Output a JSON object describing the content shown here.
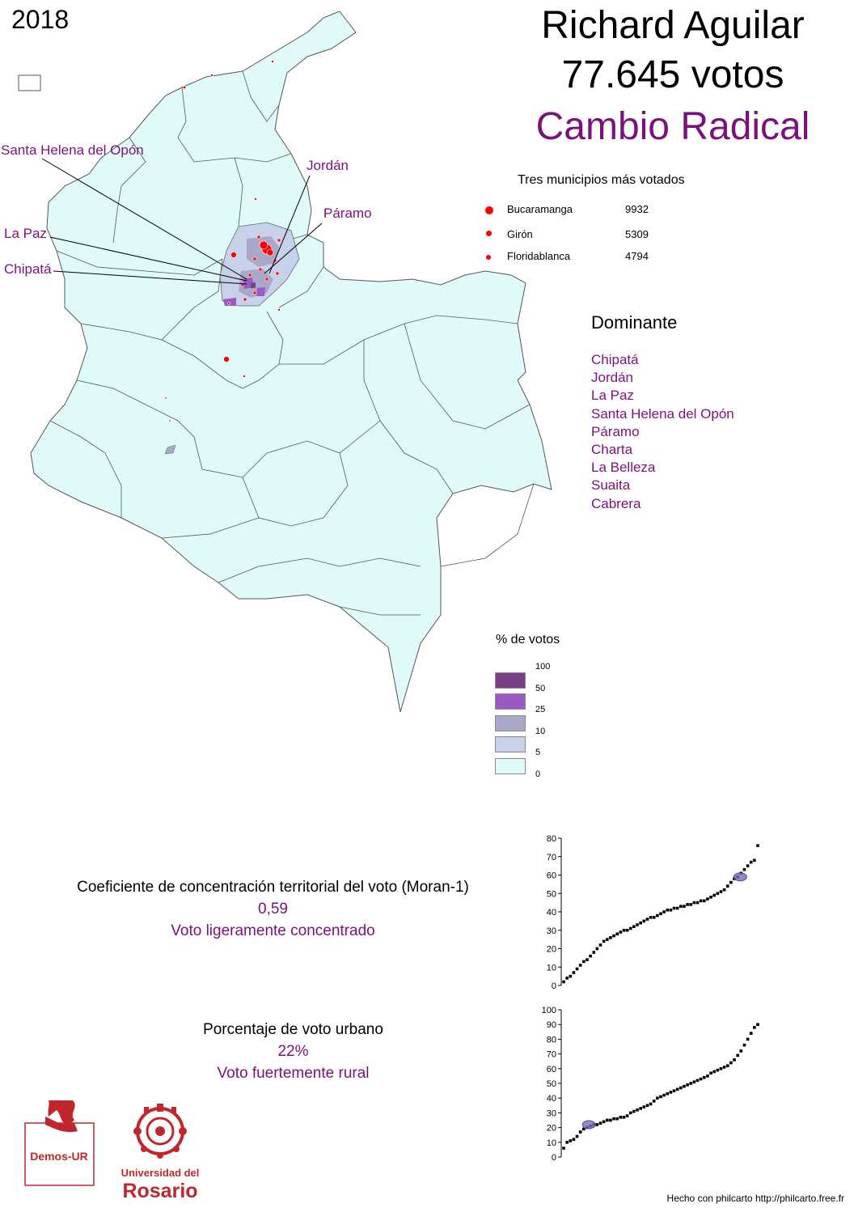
{
  "year": "2018",
  "candidate": {
    "name": "Richard Aguilar",
    "votes": "77.645 votos",
    "party": "Cambio Radical"
  },
  "colors": {
    "party": "#7b117b",
    "land": "#e0fafa",
    "border": "#555555",
    "dots": "#ff0000",
    "class_100": "#7a3e86",
    "class_50": "#9a59c4",
    "class_25": "#a9a8c8",
    "class_10": "#c7d1ea",
    "class_5": "#e0fafa"
  },
  "map_labels": [
    "Santa Helena del Opón",
    "Jordán",
    "Páramo",
    "La Paz",
    "Chipatá"
  ],
  "top_municipalities": {
    "title": "Tres municipios más votados",
    "items": [
      {
        "name": "Bucaramanga",
        "votes": "9932"
      },
      {
        "name": "Girón",
        "votes": "5309"
      },
      {
        "name": "Floridablanca",
        "votes": "4794"
      }
    ]
  },
  "dominant": {
    "title": "Dominante",
    "items": [
      "Chipatá",
      "Jordán",
      "La Paz",
      "Santa Helena del Opón",
      "Páramo",
      "Charta",
      "La Belleza",
      "Suaita",
      "Cabrera"
    ]
  },
  "legend": {
    "title": "% de votos",
    "breaks": [
      "100",
      "50",
      "25",
      "10",
      "5",
      "0"
    ]
  },
  "moran": {
    "title": "Coeficiente de concentración territorial del voto (Moran-1)",
    "value": "0,59",
    "label": "Voto ligeramente concentrado"
  },
  "urban": {
    "title": "Porcentaje de voto urbano",
    "value": "22%",
    "label": "Voto fuertemente rural"
  },
  "chart_data": [
    {
      "type": "scatter",
      "title": "",
      "xlabel": "",
      "ylabel": "",
      "ylim": [
        0,
        80
      ],
      "yticks": [
        0,
        10,
        20,
        30,
        40,
        50,
        60,
        70,
        80
      ],
      "highlight": {
        "rank": 0.91,
        "value": 59
      },
      "values": [
        2,
        4,
        5,
        7,
        9,
        11,
        13,
        14,
        16,
        18,
        20,
        22,
        24,
        25,
        26,
        27,
        28,
        29,
        30,
        30,
        31,
        32,
        33,
        34,
        35,
        36,
        37,
        37,
        38,
        39,
        40,
        41,
        41,
        42,
        42,
        43,
        43,
        44,
        44,
        45,
        45,
        46,
        46,
        47,
        48,
        49,
        50,
        51,
        52,
        54,
        56,
        58,
        59,
        61,
        63,
        65,
        67,
        68,
        76
      ]
    },
    {
      "type": "scatter",
      "title": "",
      "xlabel": "",
      "ylabel": "",
      "ylim": [
        0,
        100
      ],
      "yticks": [
        0,
        10,
        20,
        30,
        40,
        50,
        60,
        70,
        80,
        90,
        100
      ],
      "highlight": {
        "rank": 0.13,
        "value": 22
      },
      "values": [
        6,
        10,
        11,
        12,
        14,
        17,
        19,
        20,
        21,
        22,
        22,
        23,
        24,
        25,
        25,
        26,
        26,
        27,
        27,
        28,
        30,
        31,
        32,
        33,
        34,
        35,
        36,
        38,
        40,
        41,
        42,
        43,
        44,
        45,
        46,
        47,
        48,
        49,
        50,
        51,
        52,
        53,
        54,
        55,
        57,
        58,
        59,
        60,
        61,
        62,
        64,
        66,
        69,
        72,
        76,
        80,
        84,
        88,
        90
      ]
    }
  ],
  "credit": "Hecho con philcarto http://philcarto.free.fr",
  "logos": {
    "demos": "Demos-UR",
    "ur_line1": "Universidad del",
    "ur_line2": "Rosario"
  }
}
